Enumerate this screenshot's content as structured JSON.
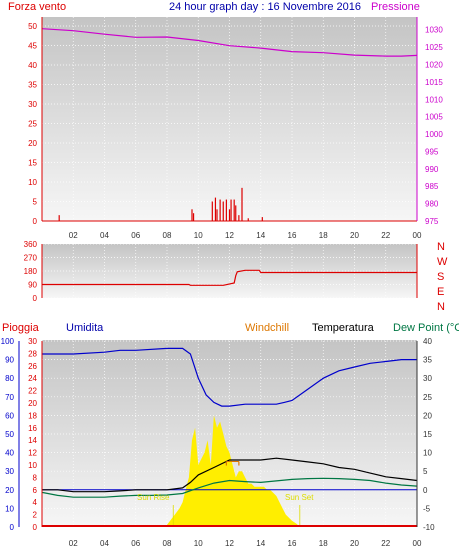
{
  "header": {
    "left": "Forza vento",
    "center": "24 hour graph day : 16 Novembre 2016",
    "right": "Pressione"
  },
  "legend": {
    "rain": "Pioggia",
    "humidity": "Umidita",
    "windchill": "Windchill",
    "temperature": "Temperatura",
    "dewpoint": "Dew Point (°C"
  },
  "annotations": {
    "sunrise": "Sun Rise",
    "sunset": "Sun Set"
  },
  "colors": {
    "wind": "#dd0000",
    "pressure": "#cc00cc",
    "direction": "#dd0000",
    "rain": "#dd0000",
    "humidity": "#0000cc",
    "windchill": "#dd7700",
    "temperature": "#000000",
    "dewpoint": "#007744",
    "sun": "#ffee00"
  },
  "chart_data": [
    {
      "type": "line",
      "title": "24 hour graph day : 16 Novembre 2016",
      "x_ticks": [
        "02",
        "04",
        "06",
        "08",
        "10",
        "12",
        "14",
        "16",
        "18",
        "20",
        "22",
        "00"
      ],
      "y_left_ticks": [
        0,
        5,
        10,
        15,
        20,
        25,
        30,
        35,
        40,
        45,
        50
      ],
      "y_right_ticks": [
        975,
        980,
        985,
        990,
        995,
        1000,
        1005,
        1010,
        1015,
        1020,
        1025,
        1030
      ],
      "ylim_left": [
        0,
        50
      ],
      "ylim_right": [
        975,
        1032.5
      ],
      "series": [
        {
          "name": "Forza vento",
          "kind": "bar",
          "x": [
            1.1,
            9.6,
            9.7,
            10.9,
            11.1,
            11.2,
            11.4,
            11.6,
            11.8,
            12.0,
            12.1,
            12.3,
            12.4,
            12.6,
            12.8,
            13.2,
            14.1
          ],
          "values": [
            1.5,
            3,
            2,
            5,
            6,
            3,
            5.5,
            5,
            5.5,
            3,
            5.5,
            5.5,
            4,
            1.5,
            8.5,
            0.7,
            1
          ]
        },
        {
          "name": "Pressione",
          "kind": "line",
          "x": [
            0,
            2,
            4,
            6,
            8,
            10,
            12,
            14,
            16,
            18,
            20,
            22,
            23,
            24
          ],
          "values": [
            1030.3,
            1029.7,
            1028.7,
            1027.8,
            1027.9,
            1026.9,
            1025.4,
            1024.7,
            1023.7,
            1023.4,
            1022.7,
            1022.4,
            1022.4,
            1022.6
          ]
        }
      ]
    },
    {
      "type": "line",
      "x_ticks": [],
      "y_left_ticks": [
        0,
        90,
        180,
        270,
        360
      ],
      "y_right_ticks": [
        "N",
        "W",
        "S",
        "E",
        "N"
      ],
      "ylim": [
        0,
        360
      ],
      "series": [
        {
          "name": "",
          "kind": "step",
          "x": [
            0,
            9.4,
            9.5,
            11.6,
            12.3,
            12.4,
            12.5,
            13.0,
            13.9,
            14.0,
            24
          ],
          "values": [
            90,
            90,
            85,
            85,
            100,
            150,
            175,
            185,
            185,
            170,
            170
          ]
        }
      ]
    },
    {
      "type": "line",
      "x_ticks": [
        "02",
        "04",
        "06",
        "08",
        "10",
        "12",
        "14",
        "16",
        "18",
        "20",
        "22",
        "00"
      ],
      "y_humidity_ticks": [
        0,
        10,
        20,
        30,
        40,
        50,
        60,
        70,
        80,
        90,
        100
      ],
      "y_rain_ticks": [
        0,
        2,
        4,
        6,
        8,
        10,
        12,
        14,
        16,
        18,
        20,
        22,
        24,
        26,
        28,
        30
      ],
      "y_temp_ticks": [
        -10,
        -5,
        0,
        5,
        10,
        15,
        20,
        25,
        30,
        35,
        40
      ],
      "ylim_humidity": [
        0,
        100
      ],
      "ylim_temp": [
        -10,
        40
      ],
      "series": [
        {
          "name": "Umidita",
          "x": [
            0,
            2,
            4,
            5,
            6,
            8,
            9,
            9.5,
            10,
            10.5,
            11,
            11.5,
            12,
            13,
            14,
            15,
            15.5,
            16,
            17,
            18,
            19,
            20,
            21,
            22,
            23,
            24
          ],
          "values": [
            93,
            93,
            94,
            95,
            95,
            96,
            96,
            93,
            80,
            71,
            67,
            65,
            65,
            66,
            66,
            66,
            67,
            68,
            74,
            80,
            84,
            86,
            88,
            89,
            90,
            90
          ]
        },
        {
          "name": "Temperatura",
          "x": [
            0,
            1,
            2,
            3,
            4,
            5,
            6,
            7,
            8,
            9,
            9.5,
            10,
            11,
            12,
            13,
            14,
            15,
            16,
            17,
            18,
            19,
            20,
            21,
            22,
            23,
            24
          ],
          "values": [
            0,
            0,
            -0.5,
            -0.5,
            -0.5,
            -0.3,
            0,
            0,
            0,
            0.5,
            2,
            4,
            6,
            8,
            8,
            8,
            8.5,
            8,
            7.5,
            7,
            6,
            5.5,
            4.5,
            3.5,
            3,
            2.5
          ]
        },
        {
          "name": "Windchill",
          "x": [
            11.8,
            12.6
          ],
          "values": [
            7.6,
            7.6
          ]
        },
        {
          "name": "Dew Point",
          "x": [
            0,
            1,
            2,
            3,
            4,
            5,
            6,
            7,
            8,
            9,
            10,
            11,
            12,
            13,
            14,
            15,
            16,
            17,
            18,
            19,
            20,
            21,
            22,
            23,
            24
          ],
          "values": [
            -0.7,
            -1.5,
            -2,
            -2,
            -2,
            -1.7,
            -1.5,
            -1.5,
            -1.4,
            -1,
            0.5,
            1.8,
            2.5,
            2.2,
            2,
            2.4,
            2.8,
            3,
            3.1,
            3,
            2.8,
            2.5,
            1.8,
            1.3,
            1
          ]
        },
        {
          "name": "Sun",
          "x": [
            7.9,
            8.2,
            8.5,
            8.8,
            9.0,
            9.2,
            9.4,
            9.6,
            9.8,
            10.0,
            10.2,
            10.4,
            10.6,
            10.8,
            11.0,
            11.2,
            11.4,
            11.6,
            11.8,
            12.0,
            12.2,
            12.4,
            12.6,
            12.8,
            13.0,
            13.2,
            13.4,
            13.6,
            13.8,
            14.0,
            14.2,
            14.4,
            14.6,
            14.8,
            15.0,
            15.2,
            15.4,
            15.6,
            16.0,
            16.3,
            16.5
          ],
          "values": [
            0,
            1,
            2,
            3,
            4,
            6,
            8,
            14,
            16,
            10,
            11,
            12,
            14,
            10,
            18,
            16,
            17,
            15,
            13,
            12,
            10,
            8,
            9,
            9,
            8,
            7,
            7,
            6.5,
            6.5,
            6.5,
            6.5,
            6,
            6,
            5.5,
            5,
            4,
            3,
            2,
            1,
            0.5,
            0
          ]
        },
        {
          "name": "Pioggia",
          "x": [
            0,
            24
          ],
          "values": [
            0,
            0
          ]
        }
      ]
    }
  ]
}
